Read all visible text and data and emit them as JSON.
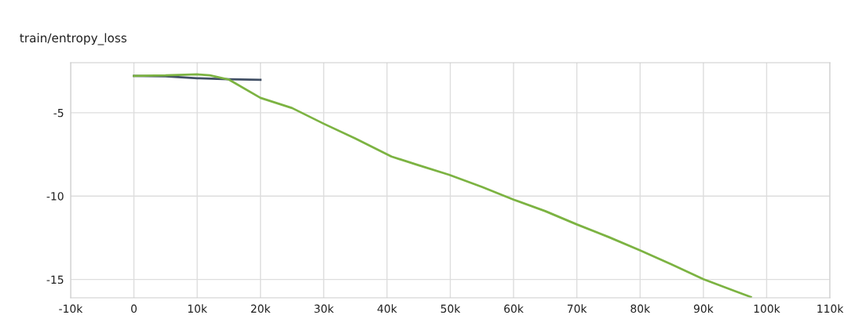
{
  "chart_data": {
    "type": "line",
    "title": "train/entropy_loss",
    "series": [
      {
        "color": "#425066",
        "x": [
          0,
          5000,
          10000,
          15000,
          20000
        ],
        "values": [
          -2.79,
          -2.82,
          -2.93,
          -2.99,
          -3.03
        ]
      },
      {
        "color": "#7cb342",
        "x": [
          0,
          5000,
          7000,
          10000,
          12000,
          15000,
          20000,
          25000,
          30000,
          35000,
          40700,
          45000,
          49800,
          55000,
          60000,
          65000,
          70000,
          75000,
          80000,
          85000,
          90000,
          95000,
          97500
        ],
        "values": [
          -2.79,
          -2.76,
          -2.73,
          -2.7,
          -2.76,
          -3.01,
          -4.11,
          -4.72,
          -5.66,
          -6.55,
          -7.63,
          -8.15,
          -8.72,
          -9.45,
          -10.21,
          -10.9,
          -11.7,
          -12.45,
          -13.26,
          -14.1,
          -14.98,
          -15.7,
          -16.05
        ]
      }
    ],
    "xlim": [
      -10000,
      110000
    ],
    "xticks": [
      {
        "value": -10000,
        "label": "-10k"
      },
      0,
      {
        "value": 10000,
        "label": "10k"
      },
      {
        "value": 20000,
        "label": "20k"
      },
      {
        "value": 30000,
        "label": "30k"
      },
      {
        "value": 40000,
        "label": "40k"
      },
      {
        "value": 50000,
        "label": "50k"
      },
      {
        "value": 60000,
        "label": "60k"
      },
      {
        "value": 70000,
        "label": "70k"
      },
      {
        "value": 80000,
        "label": "80k"
      },
      {
        "value": 90000,
        "label": "90k"
      },
      {
        "value": 100000,
        "label": "100k"
      },
      {
        "value": 110000,
        "label": "110k"
      }
    ],
    "ylim": [
      -16.1,
      -2.0
    ],
    "yticks": [
      -5,
      -10,
      -15
    ],
    "grid": true,
    "legend": false,
    "marker": "none",
    "line_style": "solid"
  }
}
